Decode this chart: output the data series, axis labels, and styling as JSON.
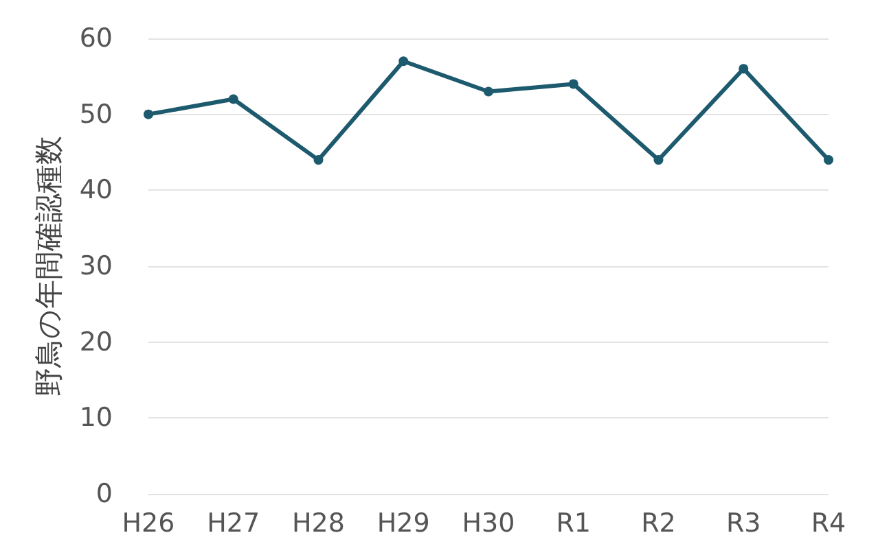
{
  "chart_data": {
    "type": "line",
    "ylabel": "野鳥の年間確認種数",
    "categories": [
      "H26",
      "H27",
      "H28",
      "H29",
      "H30",
      "R1",
      "R2",
      "R3",
      "R4"
    ],
    "series": [
      {
        "color": "#1d5a6e",
        "values": [
          50,
          52,
          44,
          57,
          53,
          54,
          44,
          56,
          44
        ]
      }
    ],
    "ylim": [
      0,
      60
    ],
    "yticks": [
      0,
      10,
      20,
      30,
      40,
      50,
      60
    ],
    "grid": "y",
    "marker": "circle",
    "line_style": "solid"
  }
}
